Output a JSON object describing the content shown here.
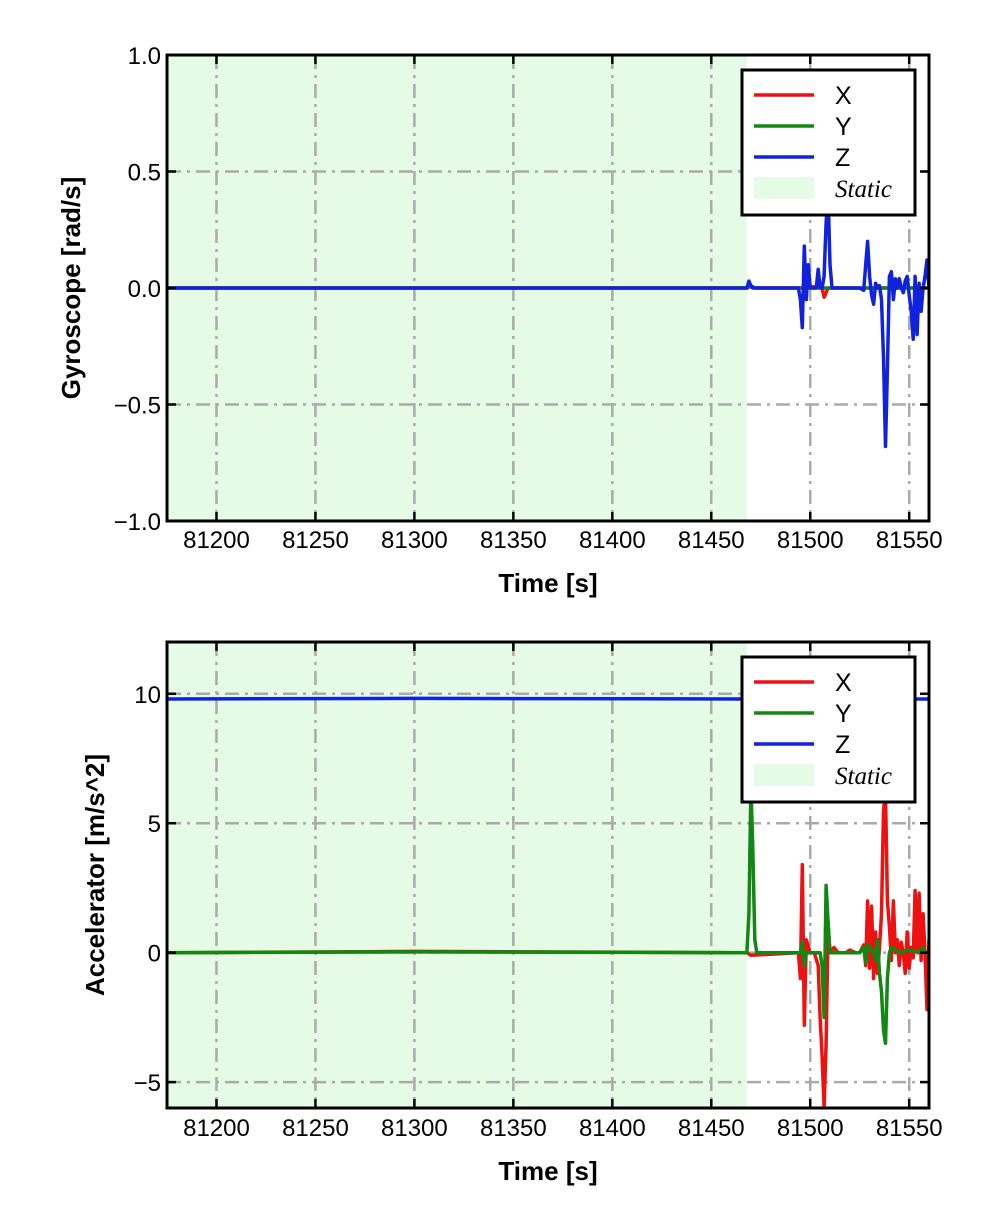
{
  "chart_data": [
    {
      "type": "line",
      "title": "",
      "xlabel": "Time [s]",
      "ylabel": "Gyroscope [rad/s]",
      "xlim": [
        81175,
        81560
      ],
      "ylim": [
        -1.0,
        1.0
      ],
      "xticks": [
        81200,
        81250,
        81300,
        81350,
        81400,
        81450,
        81500,
        81550
      ],
      "xtick_labels": [
        "81200",
        "81250",
        "81300",
        "81350",
        "81400",
        "81450",
        "81500",
        "81550"
      ],
      "yticks": [
        -1.0,
        -0.5,
        0.0,
        0.5,
        1.0
      ],
      "ytick_labels": [
        "−1.0",
        "−0.5",
        "0.0",
        "0.5",
        "1.0"
      ],
      "grid": true,
      "legend_position": "top-right",
      "static_region": {
        "label": "Static",
        "x": [
          81175,
          81468
        ],
        "color": "#e6fbe6"
      },
      "series": [
        {
          "name": "X",
          "color": "#ee1111",
          "x": [
            81175,
            81468,
            81470,
            81472,
            81496,
            81498,
            81506,
            81507,
            81509,
            81530,
            81560
          ],
          "y": [
            0.0,
            0.0,
            0.01,
            0.0,
            0.0,
            0.01,
            0.0,
            -0.04,
            0.0,
            0.0,
            0.0
          ]
        },
        {
          "name": "Y",
          "color": "#118811",
          "x": [
            81175,
            81468,
            81470,
            81472,
            81560
          ],
          "y": [
            0.0,
            0.0,
            0.01,
            0.0,
            0.0
          ]
        },
        {
          "name": "Z",
          "color": "#1122dd",
          "x": [
            81175,
            81468,
            81469,
            81470,
            81471,
            81494,
            81495,
            81496,
            81497,
            81498,
            81499,
            81500,
            81503,
            81504,
            81505,
            81506,
            81507,
            81508,
            81509,
            81510,
            81511,
            81513,
            81520,
            81525,
            81527,
            81528,
            81529,
            81530,
            81531,
            81532,
            81533,
            81534,
            81535,
            81536,
            81537,
            81538,
            81539,
            81540,
            81541,
            81542,
            81543,
            81544,
            81545,
            81546,
            81547,
            81548,
            81549,
            81550,
            81551,
            81552,
            81553,
            81554,
            81555,
            81556,
            81557,
            81558,
            81559,
            81560
          ],
          "y": [
            0.0,
            0.0,
            0.03,
            0.01,
            0.0,
            0.0,
            -0.05,
            -0.17,
            0.18,
            -0.05,
            0.1,
            0.0,
            0.0,
            0.08,
            0.0,
            0.0,
            0.05,
            0.28,
            0.4,
            0.1,
            0.0,
            0.0,
            0.0,
            0.0,
            -0.01,
            0.1,
            0.2,
            0.05,
            -0.03,
            -0.07,
            0.02,
            0.0,
            0.01,
            -0.05,
            -0.3,
            -0.68,
            -0.35,
            0.05,
            0.07,
            -0.05,
            0.04,
            0.0,
            0.04,
            0.0,
            -0.02,
            0.03,
            0.05,
            -0.03,
            -0.1,
            -0.22,
            0.05,
            -0.2,
            0.02,
            -0.1,
            0.0,
            0.05,
            0.12,
            0.0
          ]
        }
      ]
    },
    {
      "type": "line",
      "title": "",
      "xlabel": "Time [s]",
      "ylabel": "Accelerator [m/s^2]",
      "xlim": [
        81175,
        81560
      ],
      "ylim": [
        -6,
        12
      ],
      "xticks": [
        81200,
        81250,
        81300,
        81350,
        81400,
        81450,
        81500,
        81550
      ],
      "xtick_labels": [
        "81200",
        "81250",
        "81300",
        "81350",
        "81400",
        "81450",
        "81500",
        "81550"
      ],
      "yticks": [
        -5,
        0,
        5,
        10
      ],
      "ytick_labels": [
        "−5",
        "0",
        "5",
        "10"
      ],
      "grid": true,
      "legend_position": "top-right",
      "static_region": {
        "label": "Static",
        "x": [
          81175,
          81468
        ],
        "color": "#e6fbe6"
      },
      "series": [
        {
          "name": "X",
          "color": "#ee1111",
          "x": [
            81175,
            81300,
            81468,
            81470,
            81494,
            81495,
            81496,
            81497,
            81498,
            81500,
            81502,
            81504,
            81505,
            81506,
            81507,
            81508,
            81509,
            81510,
            81512,
            81514,
            81518,
            81520,
            81523,
            81525,
            81527,
            81528,
            81529,
            81530,
            81531,
            81532,
            81533,
            81534,
            81535,
            81536,
            81537,
            81538,
            81539,
            81540,
            81541,
            81542,
            81543,
            81544,
            81545,
            81546,
            81547,
            81548,
            81549,
            81550,
            81551,
            81552,
            81553,
            81554,
            81555,
            81556,
            81557,
            81558,
            81559,
            81560
          ],
          "y": [
            0.0,
            0.05,
            0.0,
            -0.1,
            0.0,
            -1.0,
            3.4,
            -2.8,
            0.5,
            0.0,
            0.0,
            -0.5,
            -2.5,
            -4.0,
            -6.0,
            -3.5,
            1.0,
            0.0,
            0.2,
            0.0,
            0.0,
            0.1,
            0.0,
            0.0,
            0.3,
            -0.5,
            2.0,
            -0.6,
            1.8,
            -1.0,
            0.8,
            -0.8,
            0.2,
            1.5,
            5.5,
            6.2,
            2.0,
            1.0,
            -0.3,
            2.0,
            0.0,
            0.5,
            -0.5,
            0.4,
            0.0,
            -0.8,
            0.8,
            -0.6,
            0.2,
            -0.2,
            2.4,
            0.0,
            2.3,
            -0.3,
            1.5,
            0.0,
            -2.2,
            0.5
          ]
        },
        {
          "name": "Y",
          "color": "#118811",
          "x": [
            81175,
            81300,
            81467,
            81468,
            81469,
            81470,
            81471,
            81472,
            81473,
            81495,
            81496,
            81497,
            81498,
            81505,
            81506,
            81507,
            81508,
            81509,
            81510,
            81520,
            81525,
            81527,
            81528,
            81529,
            81532,
            81533,
            81534,
            81535,
            81536,
            81537,
            81538,
            81539,
            81540,
            81541,
            81545,
            81550,
            81555,
            81557,
            81558,
            81560
          ],
          "y": [
            0.0,
            0.03,
            0.0,
            0.0,
            1.5,
            6.5,
            4.0,
            0.5,
            0.0,
            0.0,
            0.4,
            -0.5,
            0.0,
            0.0,
            -0.5,
            -2.5,
            2.6,
            1.2,
            0.0,
            0.0,
            0.0,
            0.2,
            -0.4,
            0.3,
            0.0,
            -0.3,
            0.5,
            -0.8,
            -1.5,
            -3.0,
            -3.5,
            -1.0,
            0.0,
            0.2,
            0.0,
            0.1,
            0.0,
            0.2,
            0.0,
            0.0
          ]
        },
        {
          "name": "Z",
          "color": "#1122dd",
          "x": [
            81175,
            81300,
            81468,
            81560
          ],
          "y": [
            9.8,
            9.82,
            9.8,
            9.8
          ]
        }
      ]
    }
  ]
}
